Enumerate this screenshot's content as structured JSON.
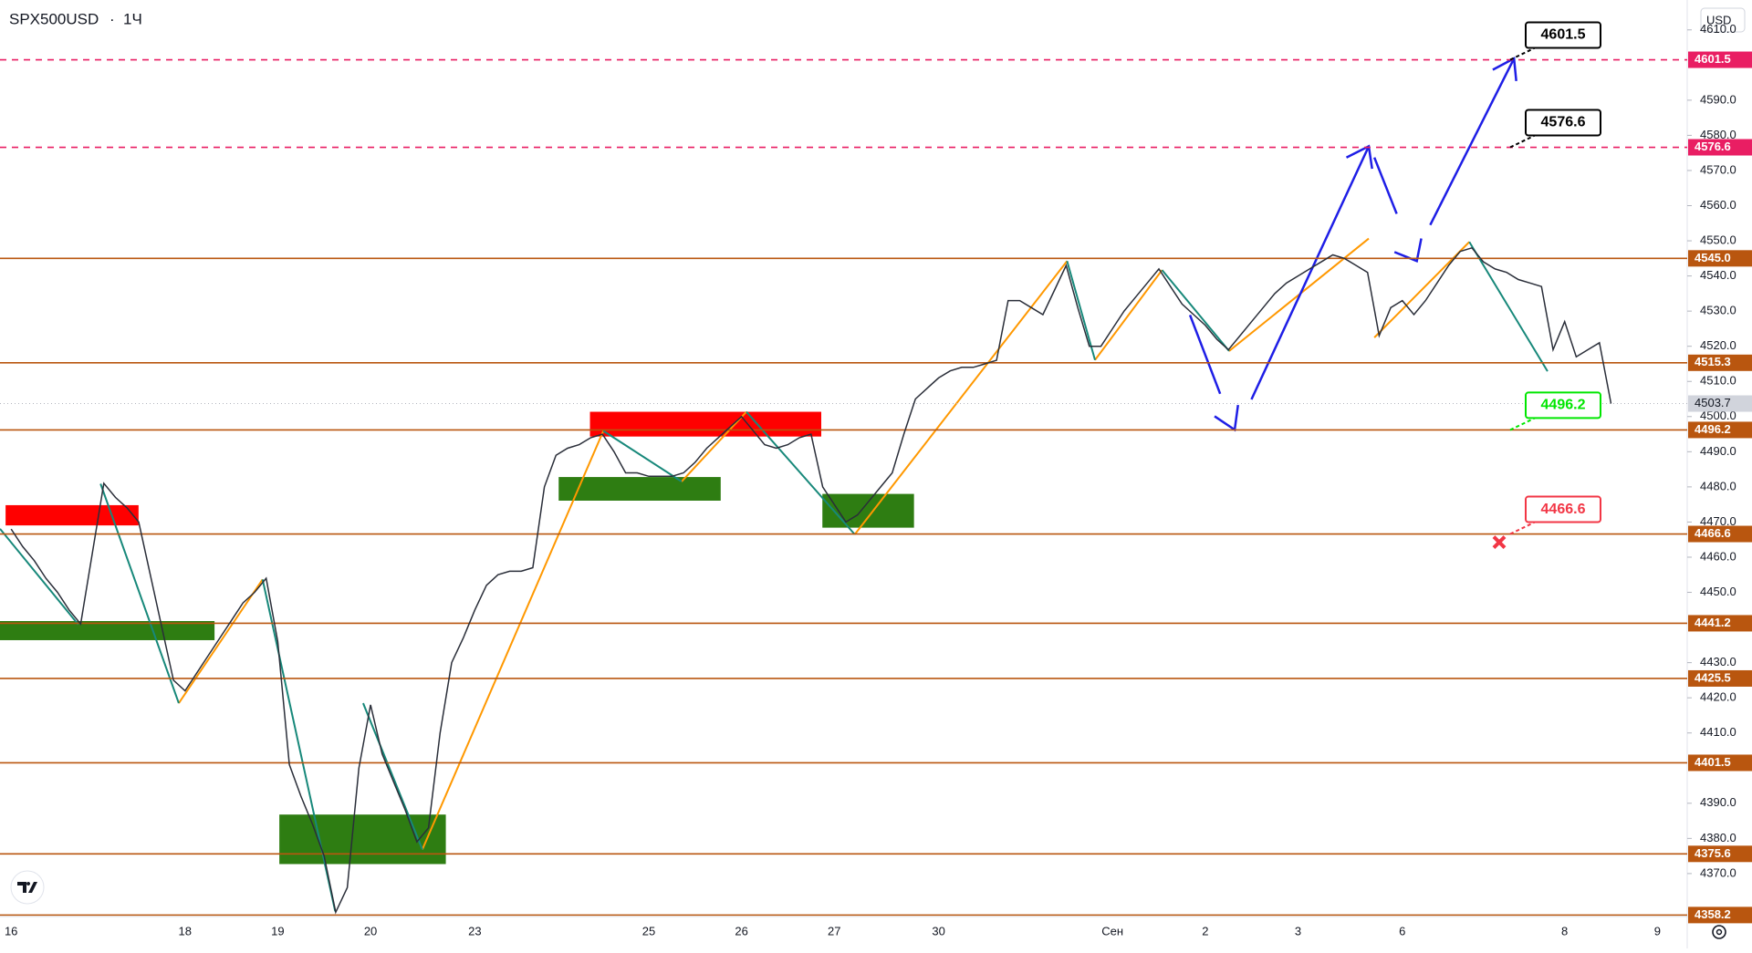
{
  "header": {
    "symbol": "SPX500USD",
    "interval": "1Ч",
    "currency": "USD"
  },
  "chart_data": {
    "type": "line",
    "color": "#2a2e39",
    "categories": [
      "16",
      null,
      null,
      null,
      null,
      null,
      null,
      null,
      null,
      null,
      null,
      null,
      null,
      null,
      null,
      "18",
      null,
      null,
      null,
      null,
      null,
      null,
      null,
      "19",
      null,
      null,
      null,
      null,
      null,
      null,
      null,
      "20",
      null,
      null,
      null,
      null,
      null,
      null,
      null,
      null,
      "23",
      null,
      null,
      null,
      null,
      null,
      null,
      null,
      null,
      null,
      null,
      null,
      null,
      null,
      null,
      "25",
      null,
      null,
      null,
      null,
      null,
      null,
      null,
      "26",
      null,
      null,
      null,
      null,
      null,
      null,
      null,
      "27",
      null,
      null,
      null,
      null,
      null,
      null,
      null,
      null,
      "30",
      null,
      null,
      null,
      null,
      null,
      null,
      null,
      null,
      null,
      null,
      null,
      null,
      null,
      null,
      "Сен",
      null,
      null,
      null,
      null,
      null,
      null,
      null,
      "2",
      null,
      null,
      null,
      null,
      null,
      null,
      null,
      "3",
      null,
      null,
      null,
      null,
      null,
      null,
      null,
      null,
      "6",
      null,
      null,
      null,
      null,
      null,
      null,
      null,
      null,
      null,
      null,
      null,
      null,
      null,
      "8",
      null,
      null,
      null,
      null,
      null,
      null,
      null,
      "9"
    ],
    "values": [
      4468,
      4463,
      4459,
      4454,
      4450,
      4445,
      4441,
      4461,
      4481,
      4477,
      4474,
      4470,
      4455,
      4440,
      4425,
      4422,
      4427,
      4432,
      4437,
      4442,
      4447,
      4450,
      4454,
      4436,
      4401,
      4392,
      4384,
      4375,
      4359,
      4366,
      4400,
      4418,
      4404,
      4396,
      4388,
      4379,
      4383,
      4410,
      4430,
      4437,
      4445,
      4452,
      4455,
      4456,
      4456,
      4457,
      4480,
      4489,
      4491,
      4492,
      4494,
      4495,
      4490,
      4484,
      4484,
      4483,
      4483,
      4483,
      4484,
      4487,
      4491,
      4494,
      4497,
      4500,
      4496,
      4492,
      4491,
      4492,
      4494,
      4495,
      4480,
      4475,
      4470,
      4472,
      4476,
      4480,
      4484,
      4495,
      4505,
      4508,
      4511,
      4513,
      4514,
      4514,
      4515,
      4516,
      4533,
      4533,
      4531,
      4529,
      4536,
      4543,
      4531,
      4520,
      4520,
      4525,
      4530,
      4534,
      4538,
      4542,
      4537,
      4532,
      4529,
      4526,
      4522,
      4519,
      4523,
      4527,
      4531,
      4535,
      4538,
      4540,
      4542,
      4544,
      4546,
      4545,
      4543,
      4541,
      4523,
      4531,
      4533,
      4529,
      4533,
      4538,
      4543,
      4547,
      4548,
      4544,
      4542,
      4541,
      4539,
      4538,
      4537,
      4519,
      4527,
      4517,
      4519,
      4521,
      4503.7,
      null,
      null,
      null,
      null
    ],
    "ylim": [
      4358.3,
      4618.5
    ],
    "yticks": [
      {
        "value": 4370,
        "label": "4370.0"
      },
      {
        "value": 4380,
        "label": "4380.0"
      },
      {
        "value": 4390,
        "label": "4390.0"
      },
      {
        "value": 4410,
        "label": "4410.0"
      },
      {
        "value": 4420,
        "label": "4420.0"
      },
      {
        "value": 4430,
        "label": "4430.0"
      },
      {
        "value": 4450,
        "label": "4450.0"
      },
      {
        "value": 4460,
        "label": "4460.0"
      },
      {
        "value": 4470,
        "label": "4470.0"
      },
      {
        "value": 4480,
        "label": "4480.0"
      },
      {
        "value": 4490,
        "label": "4490.0"
      },
      {
        "value": 4500,
        "label": "4500.0"
      },
      {
        "value": 4510,
        "label": "4510.0"
      },
      {
        "value": 4520,
        "label": "4520.0"
      },
      {
        "value": 4530,
        "label": "4530.0"
      },
      {
        "value": 4540,
        "label": "4540.0"
      },
      {
        "value": 4550,
        "label": "4550.0"
      },
      {
        "value": 4560,
        "label": "4560.0"
      },
      {
        "value": 4570,
        "label": "4570.0"
      },
      {
        "value": 4580,
        "label": "4580.0"
      },
      {
        "value": 4590,
        "label": "4590.0"
      },
      {
        "value": 4610,
        "label": "4610.0"
      }
    ],
    "levels": [
      {
        "value": 4601.5,
        "color": "#e91e63",
        "style": "dashed"
      },
      {
        "value": 4576.6,
        "color": "#e91e63",
        "style": "dashed"
      },
      {
        "value": {
          "value": 4545,
          "label": "4545.0"
        },
        "color": "#b9560f",
        "style": "solid"
      },
      {
        "value": 4515.3,
        "color": "#b9560f",
        "style": "solid"
      },
      {
        "value": 4496.2,
        "color": "#b9560f",
        "style": "solid"
      },
      {
        "value": 4466.6,
        "color": "#b9560f",
        "style": "solid"
      },
      {
        "value": 4441.2,
        "color": "#b9560f",
        "style": "solid"
      },
      {
        "value": 4425.5,
        "color": "#b9560f",
        "style": "solid"
      },
      {
        "value": 4401.5,
        "color": "#b9560f",
        "style": "solid"
      },
      {
        "value": 4375.6,
        "color": "#b9560f",
        "style": "solid"
      },
      {
        "value": 4358.2,
        "color": "#b9560f",
        "style": "solid"
      }
    ],
    "current_price": {
      "value": 4503.7,
      "color": "#d1d4dc"
    },
    "targets": [
      {
        "value": 4601.5,
        "color": "#000000"
      },
      {
        "value": 4576.6,
        "color": "#000000"
      },
      {
        "value": 4496.2,
        "color": "#00e600"
      },
      {
        "value": 4466.6,
        "color": "#f23645"
      }
    ]
  }
}
